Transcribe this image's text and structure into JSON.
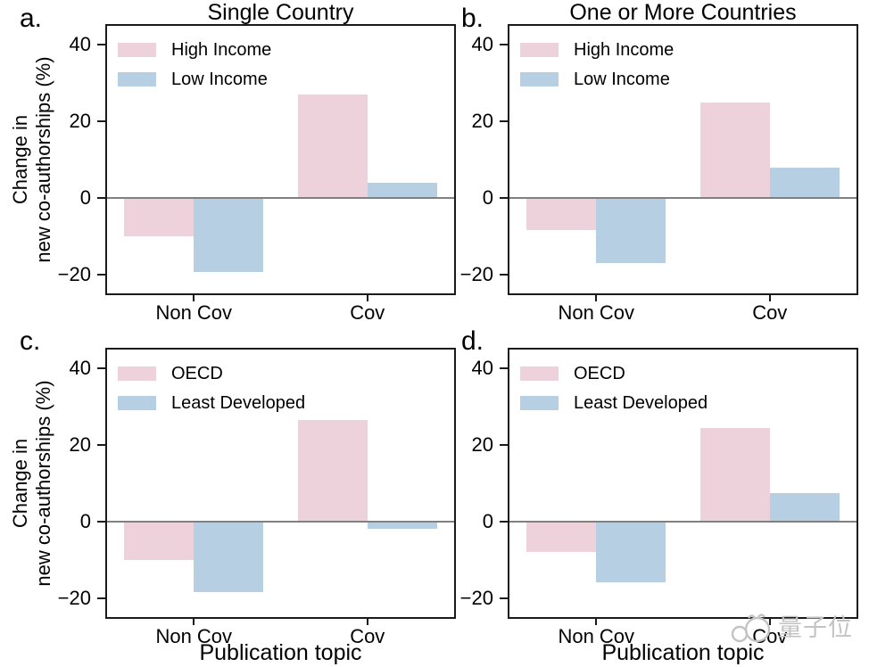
{
  "figure": {
    "background": "#ffffff",
    "frame_color": "#1a1a1a",
    "zero_line_color": "#808080",
    "watermark": {
      "text": "量子位",
      "icon": "qbitai-logo",
      "color": "#c3c3c3"
    }
  },
  "chart_data": [
    {
      "id": "a",
      "panel_label": "a.",
      "title": "Single Country",
      "type": "bar",
      "categories": [
        "Non Cov",
        "Cov"
      ],
      "series": [
        {
          "name": "High Income",
          "color": "#eed2db",
          "values": [
            -10,
            27
          ]
        },
        {
          "name": "Low Income",
          "color": "#b7cfe3",
          "values": [
            -19.5,
            4
          ]
        }
      ],
      "ylabel": "Change in\nnew co-authorships (%)",
      "xlabel": "",
      "ylim": [
        -25,
        45
      ],
      "yticks": [
        40,
        20,
        0,
        -20
      ],
      "ytick_labels": [
        "40",
        "20",
        "0",
        "−20"
      ],
      "legend_position": "upper left",
      "grid": false
    },
    {
      "id": "b",
      "panel_label": "b.",
      "title": "One or More Countries",
      "type": "bar",
      "categories": [
        "Non Cov",
        "Cov"
      ],
      "series": [
        {
          "name": "High Income",
          "color": "#eed2db",
          "values": [
            -8.5,
            25
          ]
        },
        {
          "name": "Low Income",
          "color": "#b7cfe3",
          "values": [
            -17,
            8
          ]
        }
      ],
      "ylabel": "",
      "xlabel": "",
      "ylim": [
        -25,
        45
      ],
      "yticks": [
        40,
        20,
        0,
        -20
      ],
      "ytick_labels": [
        "40",
        "20",
        "0",
        "−20"
      ],
      "legend_position": "upper left",
      "grid": false
    },
    {
      "id": "c",
      "panel_label": "c.",
      "title": "",
      "type": "bar",
      "categories": [
        "Non Cov",
        "Cov"
      ],
      "series": [
        {
          "name": "OECD",
          "color": "#eed2db",
          "values": [
            -10,
            26.5
          ]
        },
        {
          "name": "Least Developed",
          "color": "#b7cfe3",
          "values": [
            -18.5,
            -2
          ]
        }
      ],
      "ylabel": "Change in\nnew co-authorships (%)",
      "xlabel": "Publication topic",
      "ylim": [
        -25,
        45
      ],
      "yticks": [
        40,
        20,
        0,
        -20
      ],
      "ytick_labels": [
        "40",
        "20",
        "0",
        "−20"
      ],
      "legend_position": "upper left",
      "grid": false
    },
    {
      "id": "d",
      "panel_label": "d.",
      "title": "",
      "type": "bar",
      "categories": [
        "Non Cov",
        "Cov"
      ],
      "series": [
        {
          "name": "OECD",
          "color": "#eed2db",
          "values": [
            -8,
            24.5
          ]
        },
        {
          "name": "Least Developed",
          "color": "#b7cfe3",
          "values": [
            -16,
            7.5
          ]
        }
      ],
      "ylabel": "",
      "xlabel": "Publication topic",
      "ylim": [
        -25,
        45
      ],
      "yticks": [
        40,
        20,
        0,
        -20
      ],
      "ytick_labels": [
        "40",
        "20",
        "0",
        "−20"
      ],
      "legend_position": "upper left",
      "grid": false
    }
  ]
}
